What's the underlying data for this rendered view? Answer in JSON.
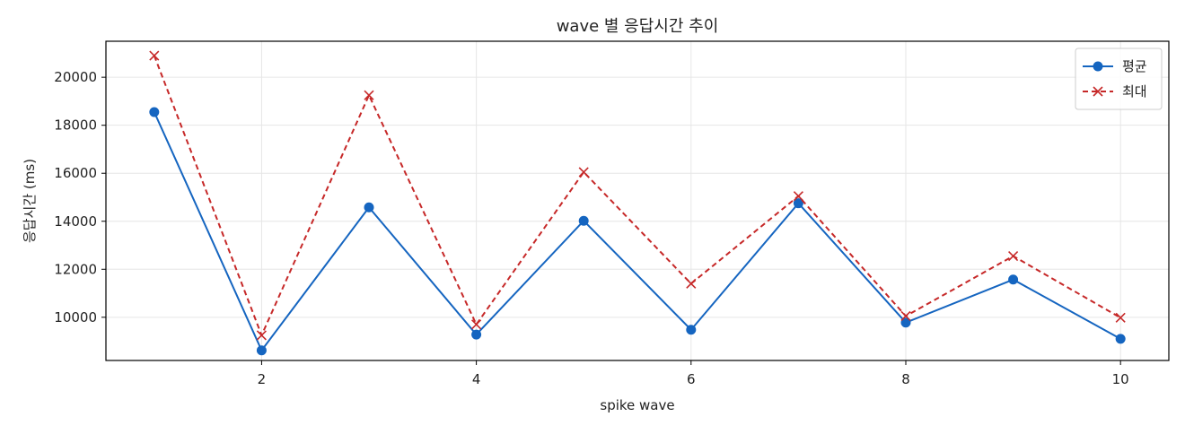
{
  "chart_data": {
    "type": "line",
    "title": "wave 별 응답시간 추이",
    "xlabel": "spike wave",
    "ylabel": "응답시간 (ms)",
    "x": [
      1,
      2,
      3,
      4,
      5,
      6,
      7,
      8,
      9,
      10
    ],
    "xlim": [
      0.55,
      10.45
    ],
    "ylim": [
      8200,
      21500
    ],
    "x_ticks": [
      2,
      4,
      6,
      8,
      10
    ],
    "y_ticks": [
      10000,
      12000,
      14000,
      16000,
      18000,
      20000
    ],
    "grid": true,
    "legend_position": "top-right",
    "series": [
      {
        "name": "평균",
        "values": [
          18550,
          8620,
          14580,
          9280,
          14020,
          9480,
          14750,
          9780,
          11570,
          9100
        ],
        "color": "#1565c0",
        "line_style": "solid",
        "marker": "circle"
      },
      {
        "name": "최대",
        "values": [
          20900,
          9250,
          19250,
          9700,
          16050,
          11400,
          15050,
          10050,
          12550,
          9980
        ],
        "color": "#c62828",
        "line_style": "dashed",
        "marker": "x"
      }
    ]
  }
}
